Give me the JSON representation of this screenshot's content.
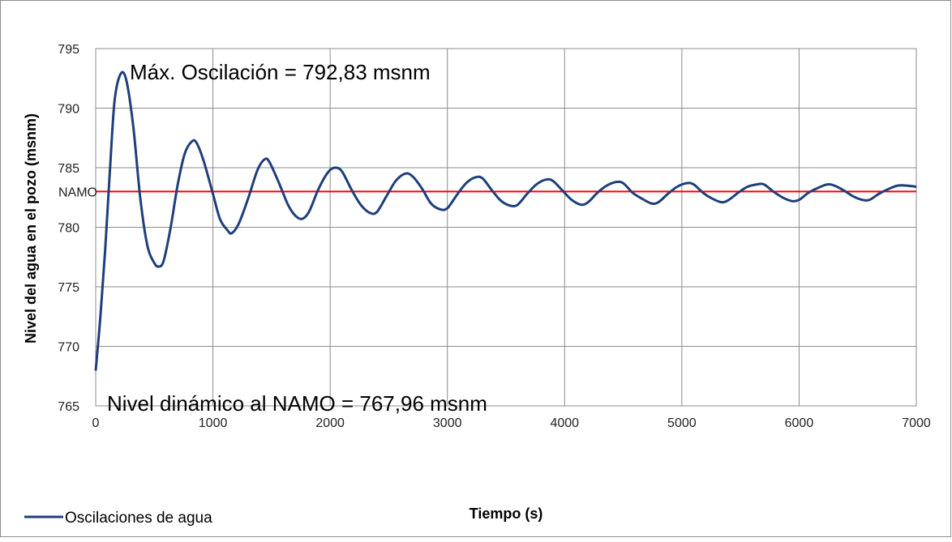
{
  "chart_data": {
    "type": "line",
    "xlabel": "Tiempo (s)",
    "ylabel": "Nivel del agua en el pozo (msnm)",
    "xlim": [
      0,
      7000
    ],
    "ylim": [
      765,
      795
    ],
    "xticks": [
      "0",
      "1000",
      "2000",
      "3000",
      "4000",
      "5000",
      "6000",
      "7000"
    ],
    "yticks": [
      "765",
      "770",
      "775",
      "780",
      "785",
      "790",
      "795"
    ],
    "grid": true,
    "legend_position": "bottom-left",
    "reference_line": {
      "label": "NAMO",
      "y": 783,
      "color": "#ff0000"
    },
    "annotations": {
      "max": "Máx. Oscilación = 792,83 msnm",
      "min": "Nivel dinámico al NAMO = 767,96 msnm"
    },
    "series": [
      {
        "name": "Oscilaciones de agua",
        "color": "#1f3f7a",
        "points": [
          [
            0,
            767.96
          ],
          [
            40,
            772.5
          ],
          [
            80,
            778
          ],
          [
            120,
            784.5
          ],
          [
            160,
            790.5
          ],
          [
            210,
            792.83
          ],
          [
            260,
            792.4
          ],
          [
            320,
            788.5
          ],
          [
            380,
            782.5
          ],
          [
            440,
            778.5
          ],
          [
            500,
            777.0
          ],
          [
            540,
            776.7
          ],
          [
            580,
            777.2
          ],
          [
            640,
            780
          ],
          [
            700,
            783.6
          ],
          [
            760,
            786.2
          ],
          [
            820,
            787.2
          ],
          [
            860,
            787.1
          ],
          [
            920,
            785.6
          ],
          [
            1000,
            782.8
          ],
          [
            1060,
            780.7
          ],
          [
            1120,
            779.8
          ],
          [
            1160,
            779.5
          ],
          [
            1220,
            780.3
          ],
          [
            1300,
            782.4
          ],
          [
            1380,
            784.8
          ],
          [
            1440,
            785.7
          ],
          [
            1480,
            785.5
          ],
          [
            1560,
            783.8
          ],
          [
            1640,
            781.9
          ],
          [
            1700,
            781
          ],
          [
            1760,
            780.7
          ],
          [
            1820,
            781.3
          ],
          [
            1900,
            783.2
          ],
          [
            1980,
            784.6
          ],
          [
            2040,
            785
          ],
          [
            2100,
            784.7
          ],
          [
            2180,
            783.2
          ],
          [
            2260,
            781.9
          ],
          [
            2340,
            781.2
          ],
          [
            2400,
            781.3
          ],
          [
            2480,
            782.6
          ],
          [
            2560,
            783.9
          ],
          [
            2640,
            784.5
          ],
          [
            2700,
            784.3
          ],
          [
            2780,
            783.3
          ],
          [
            2860,
            782
          ],
          [
            2940,
            781.5
          ],
          [
            3000,
            781.6
          ],
          [
            3080,
            782.7
          ],
          [
            3160,
            783.7
          ],
          [
            3240,
            784.2
          ],
          [
            3300,
            784.1
          ],
          [
            3380,
            783.1
          ],
          [
            3460,
            782.2
          ],
          [
            3540,
            781.8
          ],
          [
            3600,
            781.9
          ],
          [
            3680,
            782.8
          ],
          [
            3760,
            783.6
          ],
          [
            3840,
            784
          ],
          [
            3900,
            783.9
          ],
          [
            3980,
            783.1
          ],
          [
            4060,
            782.3
          ],
          [
            4140,
            781.9
          ],
          [
            4200,
            782.1
          ],
          [
            4280,
            782.9
          ],
          [
            4360,
            783.5
          ],
          [
            4440,
            783.8
          ],
          [
            4500,
            783.7
          ],
          [
            4580,
            782.9
          ],
          [
            4660,
            782.4
          ],
          [
            4740,
            782
          ],
          [
            4800,
            782.1
          ],
          [
            4880,
            782.8
          ],
          [
            4960,
            783.4
          ],
          [
            5040,
            783.7
          ],
          [
            5100,
            783.6
          ],
          [
            5180,
            782.9
          ],
          [
            5260,
            782.4
          ],
          [
            5340,
            782.1
          ],
          [
            5400,
            782.3
          ],
          [
            5480,
            782.9
          ],
          [
            5560,
            783.4
          ],
          [
            5640,
            783.6
          ],
          [
            5700,
            783.6
          ],
          [
            5780,
            783
          ],
          [
            5860,
            782.5
          ],
          [
            5940,
            782.2
          ],
          [
            6000,
            782.3
          ],
          [
            6080,
            782.9
          ],
          [
            6160,
            783.3
          ],
          [
            6240,
            783.6
          ],
          [
            6300,
            783.5
          ],
          [
            6380,
            783.1
          ],
          [
            6460,
            782.6
          ],
          [
            6540,
            782.3
          ],
          [
            6600,
            782.3
          ],
          [
            6680,
            782.8
          ],
          [
            6760,
            783.2
          ],
          [
            6840,
            783.5
          ],
          [
            6920,
            783.5
          ],
          [
            7000,
            783.4
          ]
        ]
      }
    ]
  }
}
